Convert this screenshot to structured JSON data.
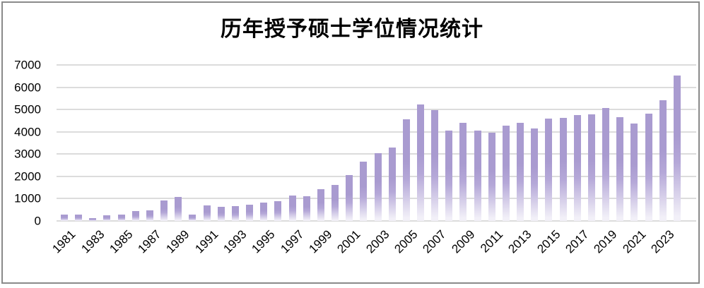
{
  "title": "历年授予硕士学位情况统计",
  "colors": {
    "bar_top": "#a99bd0",
    "bar_mid": "#b5a8d8",
    "bar_bottom_fade": "#f2f0f8",
    "gridline": "#dcdcdc",
    "frame_border": "#8a8a8a",
    "axis_text": "#000000",
    "title_text": "#000000",
    "background": "#ffffff"
  },
  "chart_data": {
    "type": "bar",
    "title": "历年授予硕士学位情况统计",
    "xlabel": "",
    "ylabel": "",
    "x": [
      1981,
      1982,
      1983,
      1984,
      1985,
      1986,
      1987,
      1988,
      1989,
      1990,
      1991,
      1992,
      1993,
      1994,
      1995,
      1996,
      1997,
      1998,
      1999,
      2000,
      2001,
      2002,
      2003,
      2004,
      2005,
      2006,
      2007,
      2008,
      2009,
      2010,
      2011,
      2012,
      2013,
      2014,
      2015,
      2016,
      2017,
      2018,
      2019,
      2020,
      2021,
      2022,
      2023,
      2024
    ],
    "values": [
      300,
      300,
      130,
      240,
      280,
      430,
      490,
      910,
      1080,
      300,
      710,
      630,
      660,
      740,
      810,
      900,
      1130,
      1120,
      1420,
      1630,
      2050,
      2650,
      3050,
      3280,
      4560,
      5230,
      4970,
      4060,
      4400,
      4040,
      3950,
      4280,
      4410,
      4160,
      4600,
      4640,
      4750,
      4780,
      5070,
      4650,
      4380,
      4800,
      5420,
      6530
    ],
    "xtick_labels": [
      "1981",
      "1983",
      "1985",
      "1987",
      "1989",
      "1991",
      "1993",
      "1995",
      "1997",
      "1999",
      "2001",
      "2003",
      "2005",
      "2007",
      "2009",
      "2011",
      "2013",
      "2015",
      "2017",
      "2019",
      "2021",
      "2023"
    ],
    "ytick_values": [
      0,
      1000,
      2000,
      3000,
      4000,
      5000,
      6000,
      7000
    ],
    "ytick_labels": [
      "0",
      "1000",
      "2000",
      "3000",
      "4000",
      "5000",
      "6000",
      "7000"
    ],
    "ylim": [
      0,
      7000
    ],
    "grid": true,
    "legend": false,
    "bar_gradient": true
  }
}
